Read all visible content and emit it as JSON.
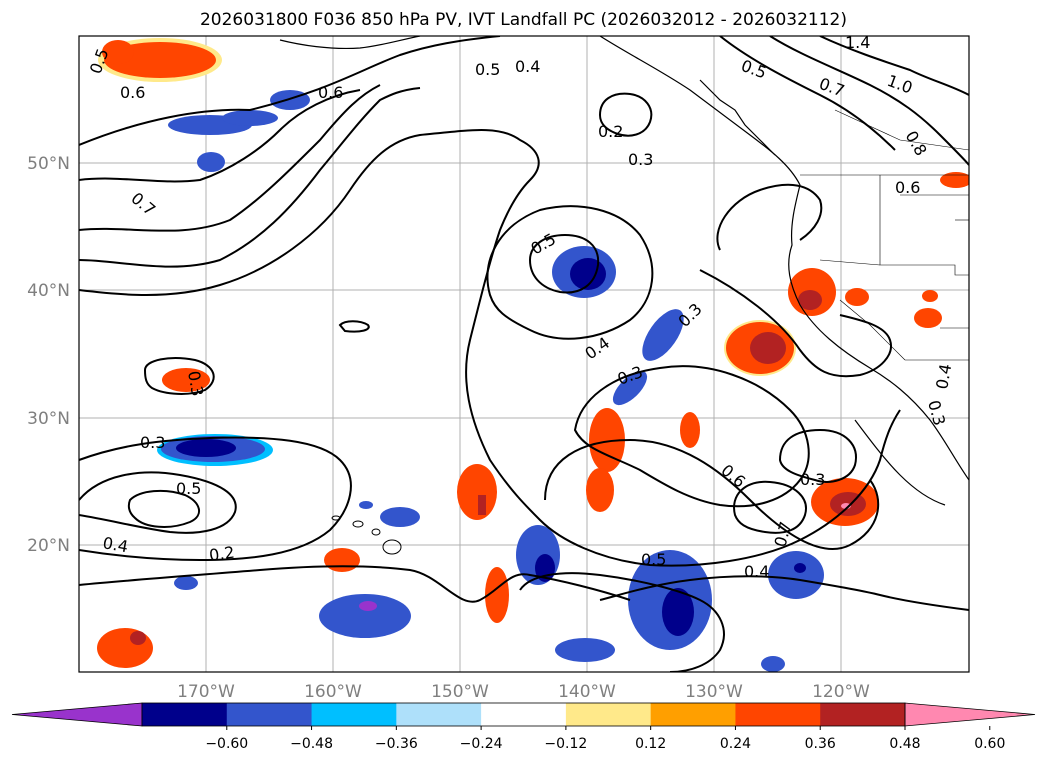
{
  "title": "2026031800 F036 850 hPa PV, IVT Landfall PC (2026032012 - 2026032112)",
  "map": {
    "lat_labels": [
      "50°N",
      "40°N",
      "30°N",
      "20°N"
    ],
    "lon_labels": [
      "170°W",
      "160°W",
      "150°W",
      "140°W",
      "130°W",
      "120°W"
    ],
    "contour_labels": [
      "0.5",
      "0.6",
      "0.7",
      "0.6",
      "0.5",
      "0.4",
      "0.2",
      "0.3",
      "0.5",
      "0.3",
      "0.4",
      "0.3",
      "0.6",
      "0.7",
      "0.3",
      "0.4",
      "0.3",
      "0.5",
      "0.4",
      "0.2",
      "0.5",
      "0.3",
      "0.3",
      "0.6",
      "0.4",
      "1.4",
      "1.0",
      "0.8",
      "0.7",
      "0.5"
    ]
  },
  "colorbar": {
    "ticks": [
      "−0.60",
      "−0.48",
      "−0.36",
      "−0.24",
      "−0.12",
      "0.12",
      "0.24",
      "0.36",
      "0.48",
      "0.60"
    ],
    "colors": [
      "#9933cc",
      "#00008b",
      "#3355cc",
      "#00bfff",
      "#aee0fa",
      "#ffffff",
      "#ffe98a",
      "#ff9f00",
      "#ff4500",
      "#b22222",
      "#ff88b0"
    ]
  },
  "legend": {
    "negative_high": "#00008b",
    "negative_mid": "#3355cc",
    "negative_low": "#00bfff",
    "positive_low": "#ff9f00",
    "positive_mid": "#ff4500",
    "positive_high": "#b22222"
  }
}
